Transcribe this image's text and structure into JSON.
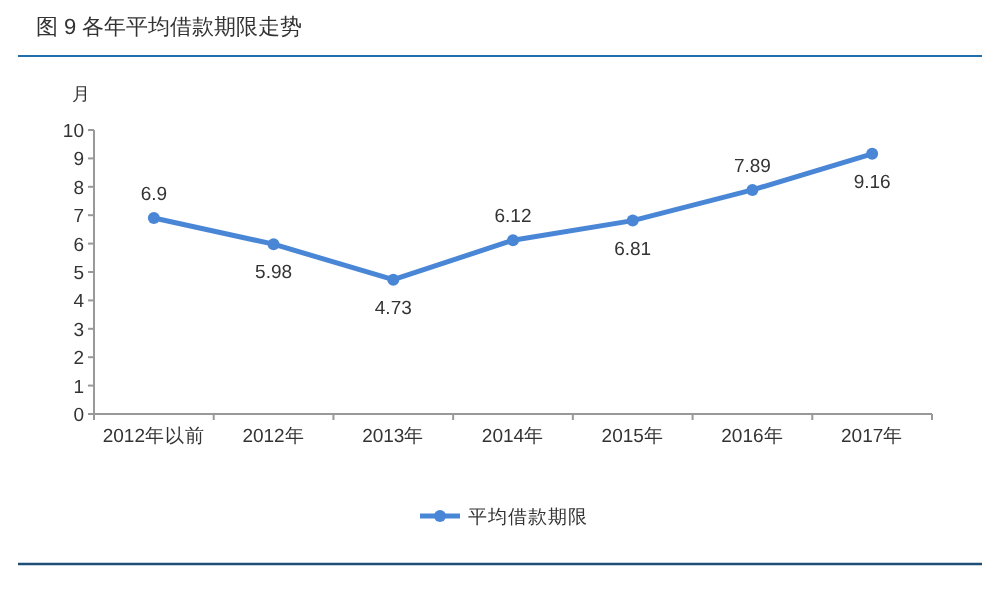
{
  "chart_data": {
    "type": "line",
    "title": "图 9   各年平均借款期限走势",
    "ylabel": "月",
    "categories": [
      "2012年以前",
      "2012年",
      "2013年",
      "2014年",
      "2015年",
      "2016年",
      "2017年"
    ],
    "series": [
      {
        "name": "平均借款期限",
        "color": "#4a86d6",
        "values": [
          6.9,
          5.98,
          4.73,
          6.12,
          6.81,
          7.89,
          9.16
        ]
      }
    ],
    "ylim": [
      0,
      10
    ],
    "yticks": [
      0,
      1,
      2,
      3,
      4,
      5,
      6,
      7,
      8,
      9,
      10
    ],
    "data_labels": true,
    "legend": "bottom",
    "marker": "circle",
    "grid": false
  }
}
